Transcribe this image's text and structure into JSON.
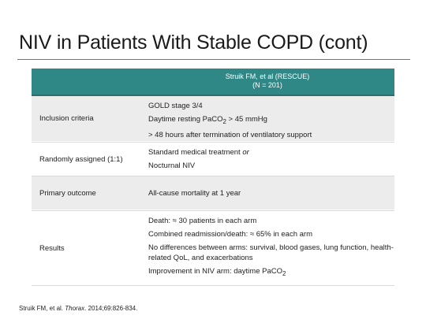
{
  "slide": {
    "title": "NIV in Patients With Stable COPD (cont)"
  },
  "table": {
    "header_line1": "Struik FM, et al (RESCUE)",
    "header_line2": "(N = 201)",
    "rows": [
      {
        "label": "Inclusion criteria",
        "lines": [
          {
            "pre": "GOLD stage 3/4"
          },
          {
            "pre": "Daytime resting PaCO",
            "sub": "2",
            "post": " > 45 mmHg"
          },
          {
            "pre": "> 48 hours after termination of ventilatory support"
          }
        ]
      },
      {
        "label": "Randomly assigned (1:1)",
        "lines": [
          {
            "pre": "Standard medical treatment ",
            "em": "or"
          },
          {
            "pre": "Nocturnal NIV"
          }
        ]
      },
      {
        "label": "Primary outcome",
        "lines": [
          {
            "pre": "All-cause mortality at 1 year"
          }
        ]
      },
      {
        "label": "Results",
        "lines": [
          {
            "pre": "Death:  ≈ 30 patients in each arm"
          },
          {
            "pre": "Combined readmission/death:  ≈ 65% in each arm"
          },
          {
            "pre": "No differences between arms: survival, blood gases, lung function, health-related QoL, and exacerbations"
          },
          {
            "pre": "Improvement in NIV arm: daytime PaCO",
            "sub": "2"
          }
        ]
      }
    ]
  },
  "citation": {
    "pre": "Struik FM, et al. ",
    "journal": "Thorax",
    "post": ". 2014;69:826-834."
  }
}
